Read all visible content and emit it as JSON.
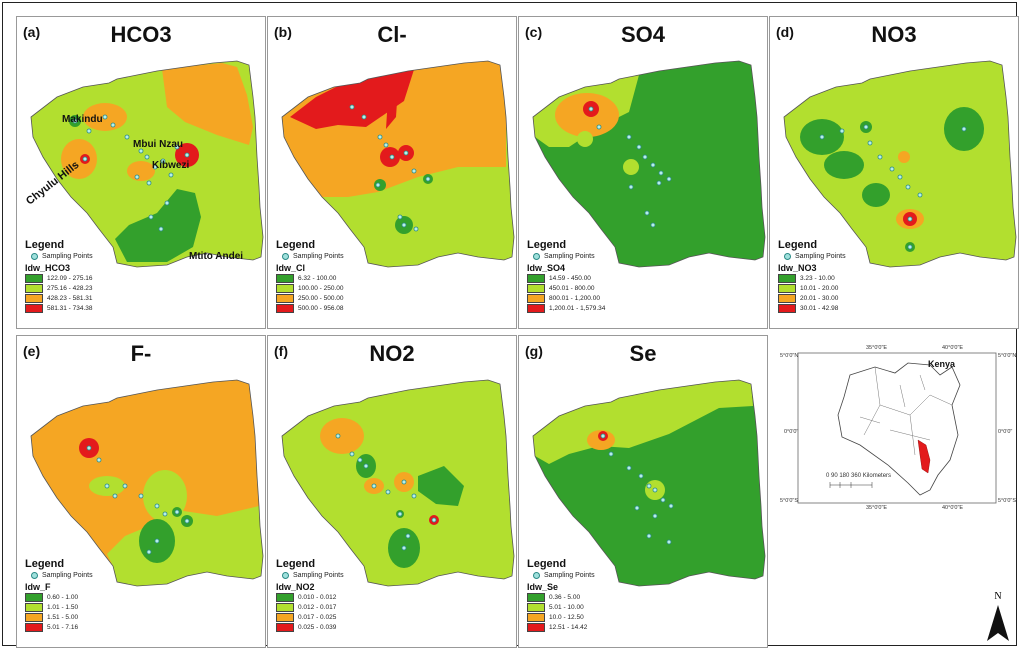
{
  "panels": [
    {
      "letter": "(a)",
      "title": "HCO3",
      "field": "Idw_HCO3",
      "classes": [
        {
          "label": "122.09 - 275.16",
          "color": "#33a02c"
        },
        {
          "label": "275.16 - 428.23",
          "color": "#b2df2f"
        },
        {
          "label": "428.23 - 581.31",
          "color": "#f5a623"
        },
        {
          "label": "581.31 - 734.38",
          "color": "#e31a1c"
        }
      ]
    },
    {
      "letter": "(b)",
      "title": "Cl-",
      "field": "Idw_Cl",
      "classes": [
        {
          "label": "6.32 - 100.00",
          "color": "#33a02c"
        },
        {
          "label": "100.00 - 250.00",
          "color": "#b2df2f"
        },
        {
          "label": "250.00 - 500.00",
          "color": "#f5a623"
        },
        {
          "label": "500.00 - 956.08",
          "color": "#e31a1c"
        }
      ]
    },
    {
      "letter": "(c)",
      "title": "SO4",
      "field": "Idw_SO4",
      "classes": [
        {
          "label": "14.59 - 450.00",
          "color": "#33a02c"
        },
        {
          "label": "450.01 - 800.00",
          "color": "#b2df2f"
        },
        {
          "label": "800.01 - 1,200.00",
          "color": "#f5a623"
        },
        {
          "label": "1,200.01 - 1,579.34",
          "color": "#e31a1c"
        }
      ]
    },
    {
      "letter": "(d)",
      "title": "NO3",
      "field": "Idw_NO3",
      "classes": [
        {
          "label": "3.23 - 10.00",
          "color": "#33a02c"
        },
        {
          "label": "10.01 - 20.00",
          "color": "#b2df2f"
        },
        {
          "label": "20.01 - 30.00",
          "color": "#f5a623"
        },
        {
          "label": "30.01 - 42.98",
          "color": "#e31a1c"
        }
      ]
    },
    {
      "letter": "(e)",
      "title": "F-",
      "field": "Idw_F",
      "classes": [
        {
          "label": "0.60 - 1.00",
          "color": "#33a02c"
        },
        {
          "label": "1.01 - 1.50",
          "color": "#b2df2f"
        },
        {
          "label": "1.51 - 5.00",
          "color": "#f5a623"
        },
        {
          "label": "5.01 - 7.16",
          "color": "#e31a1c"
        }
      ]
    },
    {
      "letter": "(f)",
      "title": "NO2",
      "field": "Idw_NO2",
      "classes": [
        {
          "label": "0.010 - 0.012",
          "color": "#33a02c"
        },
        {
          "label": "0.012 - 0.017",
          "color": "#b2df2f"
        },
        {
          "label": "0.017 - 0.025",
          "color": "#f5a623"
        },
        {
          "label": "0.025 - 0.039",
          "color": "#e31a1c"
        }
      ]
    },
    {
      "letter": "(g)",
      "title": "Se",
      "field": "Idw_Se",
      "classes": [
        {
          "label": "0.36 - 5.00",
          "color": "#33a02c"
        },
        {
          "label": "5.01 - 10.00",
          "color": "#b2df2f"
        },
        {
          "label": "10.0 - 12.50",
          "color": "#f5a623"
        },
        {
          "label": "12.51 - 14.42",
          "color": "#e31a1c"
        }
      ]
    }
  ],
  "legend_title": "Legend",
  "sampling_points_label": "Sampling Points",
  "places": {
    "makindu": "Makindu",
    "mbui_nzau": "Mbui Nzau",
    "kibwezi": "Kibwezi",
    "chyulu_hills": "Chyulu Hills",
    "mtito_andei": "Mtito Andei"
  },
  "inset": {
    "country": "Kenya",
    "scale_label": "0  90 180      360 Kilometers",
    "lat_top": "5°0'0\"N",
    "lat_mid": "0°0'0\"",
    "lat_bottom": "5°0'0\"S",
    "lon_left": "35°0'0\"E",
    "lon_right": "40°0'0\"E",
    "study_area_color": "#e31a1c"
  },
  "north_label": "N",
  "colors": {
    "c1": "#33a02c",
    "c2": "#b2df2f",
    "c3": "#f5a623",
    "c4": "#e31a1c",
    "dot": "#2a8a86"
  }
}
